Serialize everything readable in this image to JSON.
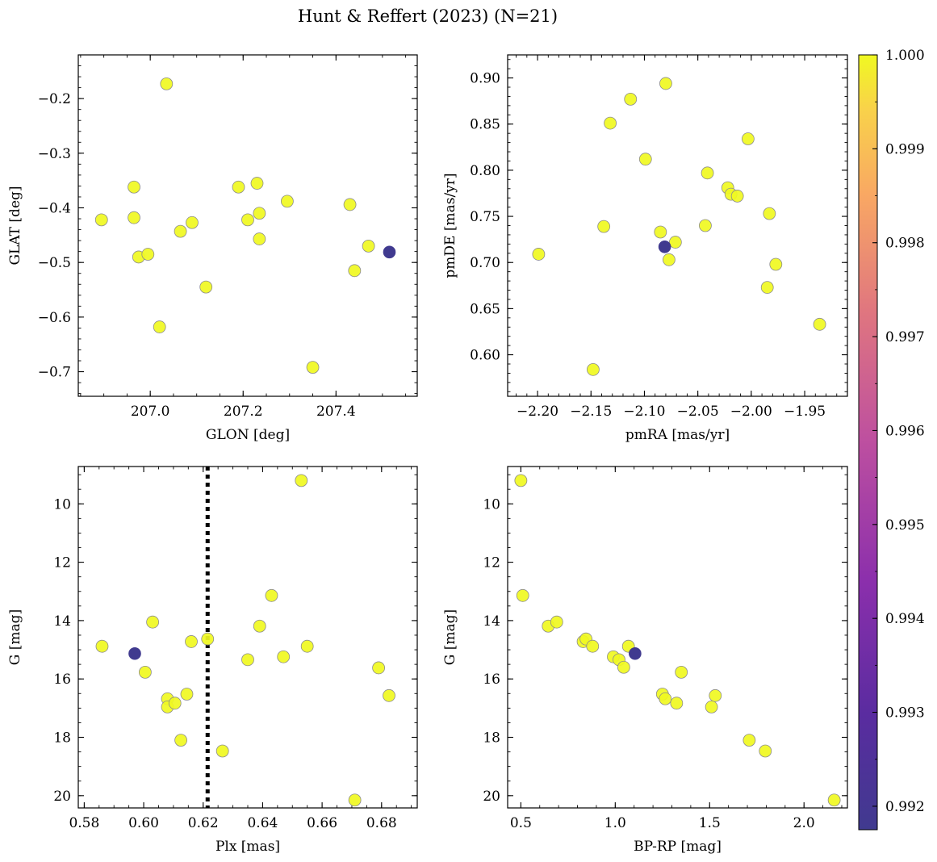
{
  "figure": {
    "title": "Hunt & Reffert (2023) (N=21)"
  },
  "colorbar": {
    "vmin": 0.99175,
    "vmax": 1.0,
    "ticks": [
      0.992,
      0.993,
      0.994,
      0.995,
      0.996,
      0.997,
      0.998,
      0.999,
      1.0
    ],
    "tick_labels": [
      "0.992",
      "0.993",
      "0.994",
      "0.995",
      "0.996",
      "0.997",
      "0.998",
      "0.999",
      "1.000"
    ],
    "cmap": "plasma"
  },
  "colors": {
    "high": "#f0f921",
    "low": "#403a8f",
    "edge": "#8c8c8c",
    "frame": "#000000"
  },
  "chart_data": [
    {
      "type": "scatter",
      "id": "glon-glat",
      "xlabel": "GLON [deg]",
      "ylabel": "GLAT [deg]",
      "xlim": [
        206.845,
        207.575
      ],
      "ylim": [
        -0.745,
        -0.12
      ],
      "invert_y": false,
      "xticks": [
        207.0,
        207.2,
        207.4
      ],
      "xtick_labels": [
        "207.0",
        "207.2",
        "207.4"
      ],
      "xminor": 0.05,
      "yticks": [
        -0.7,
        -0.6,
        -0.5,
        -0.4,
        -0.3,
        -0.2
      ],
      "ytick_labels": [
        "−0.7",
        "−0.6",
        "−0.5",
        "−0.4",
        "−0.3",
        "−0.2"
      ],
      "yminor": 0.02,
      "x": [
        207.035,
        206.965,
        206.895,
        206.965,
        206.975,
        206.995,
        207.065,
        207.09,
        207.02,
        207.12,
        207.19,
        207.21,
        207.23,
        207.235,
        207.235,
        207.295,
        207.35,
        207.43,
        207.44,
        207.47,
        207.515
      ],
      "y": [
        -0.173,
        -0.362,
        -0.422,
        -0.418,
        -0.49,
        -0.485,
        -0.443,
        -0.427,
        -0.618,
        -0.545,
        -0.362,
        -0.422,
        -0.355,
        -0.41,
        -0.457,
        -0.388,
        -0.692,
        -0.394,
        -0.515,
        -0.47,
        -0.481
      ],
      "c": [
        1,
        1,
        1,
        1,
        1,
        1,
        1,
        1,
        1,
        1,
        1,
        1,
        1,
        1,
        1,
        1,
        1,
        1,
        1,
        1,
        0.99175
      ]
    },
    {
      "type": "scatter",
      "id": "pmra-pmde",
      "xlabel": "pmRA [mas/yr]",
      "ylabel": "pmDE [mas/yr]",
      "xlim": [
        -2.228,
        -1.91
      ],
      "ylim": [
        0.555,
        0.925
      ],
      "invert_y": false,
      "xticks": [
        -2.2,
        -2.15,
        -2.1,
        -2.05,
        -2.0,
        -1.95
      ],
      "xtick_labels": [
        "−2.20",
        "−2.15",
        "−2.10",
        "−2.05",
        "−2.00",
        "−1.95"
      ],
      "xminor": 0.01,
      "yticks": [
        0.6,
        0.65,
        0.7,
        0.75,
        0.8,
        0.85,
        0.9
      ],
      "ytick_labels": [
        "0.60",
        "0.65",
        "0.70",
        "0.75",
        "0.80",
        "0.85",
        "0.90"
      ],
      "yminor": 0.01,
      "x": [
        -2.199,
        -2.148,
        -2.138,
        -2.132,
        -2.113,
        -2.099,
        -2.08,
        -2.085,
        -2.071,
        -2.077,
        -2.041,
        -2.043,
        -2.003,
        -2.022,
        -2.019,
        -2.013,
        -1.983,
        -1.977,
        -1.985,
        -1.936,
        -2.081
      ],
      "y": [
        0.709,
        0.584,
        0.739,
        0.851,
        0.877,
        0.812,
        0.894,
        0.733,
        0.722,
        0.703,
        0.797,
        0.74,
        0.834,
        0.781,
        0.774,
        0.772,
        0.753,
        0.698,
        0.673,
        0.633,
        0.717
      ],
      "c": [
        1,
        1,
        1,
        1,
        1,
        1,
        1,
        1,
        1,
        1,
        1,
        1,
        1,
        1,
        1,
        1,
        1,
        1,
        1,
        1,
        0.99175
      ]
    },
    {
      "type": "scatter",
      "id": "plx-g",
      "xlabel": "Plx [mas]",
      "ylabel": "G [mag]",
      "xlim": [
        0.578,
        0.692
      ],
      "ylim": [
        8.72,
        20.42
      ],
      "invert_y": true,
      "xticks": [
        0.58,
        0.6,
        0.62,
        0.64,
        0.66,
        0.68
      ],
      "xtick_labels": [
        "0.58",
        "0.60",
        "0.62",
        "0.64",
        "0.66",
        "0.68"
      ],
      "xminor": 0.005,
      "yticks": [
        10,
        12,
        14,
        16,
        18,
        20
      ],
      "ytick_labels": [
        "10",
        "12",
        "14",
        "16",
        "18",
        "20"
      ],
      "yminor": 0.5,
      "vline": {
        "x": 0.6215,
        "style": "dotted"
      },
      "x": [
        0.586,
        0.6005,
        0.603,
        0.608,
        0.608,
        0.6105,
        0.6125,
        0.6145,
        0.616,
        0.6215,
        0.6265,
        0.635,
        0.639,
        0.643,
        0.647,
        0.653,
        0.655,
        0.671,
        0.679,
        0.6825,
        0.597
      ],
      "y": [
        14.88,
        15.77,
        14.05,
        16.68,
        16.96,
        16.83,
        18.1,
        16.52,
        14.72,
        14.63,
        18.47,
        15.34,
        14.19,
        13.14,
        15.24,
        9.2,
        14.88,
        20.15,
        15.62,
        16.57,
        15.13
      ],
      "c": [
        1,
        1,
        1,
        1,
        1,
        1,
        1,
        1,
        1,
        1,
        1,
        1,
        1,
        1,
        1,
        1,
        1,
        1,
        1,
        1,
        0.99175
      ]
    },
    {
      "type": "scatter",
      "id": "bprp-g",
      "xlabel": "BP-RP [mag]",
      "ylabel": "G [mag]",
      "xlim": [
        0.43,
        2.23
      ],
      "ylim": [
        8.72,
        20.42
      ],
      "invert_y": true,
      "xticks": [
        0.5,
        1.0,
        1.5,
        2.0
      ],
      "xtick_labels": [
        "0.5",
        "1.0",
        "1.5",
        "2.0"
      ],
      "xminor": 0.1,
      "yticks": [
        10,
        12,
        14,
        16,
        18,
        20
      ],
      "ytick_labels": [
        "10",
        "12",
        "14",
        "16",
        "18",
        "20"
      ],
      "yminor": 0.5,
      "x": [
        0.5,
        0.51,
        0.645,
        0.69,
        0.83,
        0.845,
        0.88,
        0.99,
        1.02,
        1.045,
        1.07,
        1.25,
        1.265,
        1.325,
        1.35,
        1.51,
        1.53,
        1.71,
        1.795,
        2.16,
        1.105
      ],
      "y": [
        9.2,
        13.14,
        14.19,
        14.05,
        14.72,
        14.63,
        14.88,
        15.24,
        15.34,
        15.6,
        14.88,
        16.52,
        16.68,
        16.83,
        15.77,
        16.96,
        16.57,
        18.1,
        18.47,
        20.15,
        15.13
      ],
      "c": [
        1,
        1,
        1,
        1,
        1,
        1,
        1,
        1,
        1,
        1,
        1,
        1,
        1,
        1,
        1,
        1,
        1,
        1,
        1,
        1,
        0.99175
      ]
    }
  ]
}
